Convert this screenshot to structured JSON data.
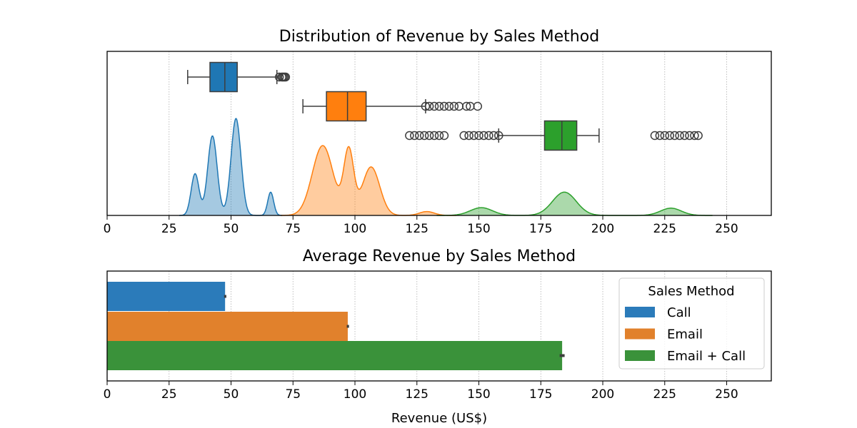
{
  "chart_data": [
    {
      "type": "box+kde",
      "title": "Distribution of Revenue by Sales Method",
      "xlabel": "",
      "ylabel": "",
      "xlim": [
        0,
        268
      ],
      "xticks": [
        0,
        25,
        50,
        75,
        100,
        125,
        150,
        175,
        200,
        225,
        250
      ],
      "grid": "x-dotted",
      "colors": {
        "Call": "#1f77b4",
        "Email": "#ff7f0e",
        "Email + Call": "#2ca02c"
      },
      "boxplots": [
        {
          "name": "Call",
          "whisker_low": 32.5,
          "q1": 41.5,
          "median": 47.5,
          "q3": 52.5,
          "whisker_high": 68.5,
          "outliers": [
            69.5,
            70.5,
            71.0,
            71.5,
            72.0
          ]
        },
        {
          "name": "Email",
          "whisker_low": 79.0,
          "q1": 88.5,
          "median": 97.0,
          "q3": 104.5,
          "whisker_high": 128.5,
          "outliers": [
            128.5,
            130,
            132,
            134,
            136,
            138,
            140,
            142,
            145,
            146.5,
            149.5
          ]
        },
        {
          "name": "Email + Call",
          "whisker_low": 158.0,
          "q1": 176.5,
          "median": 183.5,
          "q3": 189.5,
          "whisker_high": 198.5,
          "outliers": [
            122,
            124,
            126,
            128,
            130,
            132,
            134,
            136,
            144,
            146,
            148,
            150,
            152,
            154,
            156,
            158,
            221,
            223,
            225,
            227,
            229,
            231,
            233,
            235,
            237,
            238.5
          ]
        }
      ],
      "kde": [
        {
          "name": "Call",
          "peaks": [
            {
              "x": 35.5,
              "h": 0.43,
              "w": 1.6
            },
            {
              "x": 42.5,
              "h": 0.82,
              "w": 1.9
            },
            {
              "x": 52.0,
              "h": 1.0,
              "w": 2.0
            },
            {
              "x": 66.0,
              "h": 0.24,
              "w": 1.2
            }
          ]
        },
        {
          "name": "Email",
          "peaks": [
            {
              "x": 87.0,
              "h": 0.72,
              "w": 4.2
            },
            {
              "x": 97.5,
              "h": 0.66,
              "w": 2.0
            },
            {
              "x": 106.5,
              "h": 0.5,
              "w": 3.5
            },
            {
              "x": 129.0,
              "h": 0.04,
              "w": 3.0
            }
          ]
        },
        {
          "name": "Email + Call",
          "peaks": [
            {
              "x": 151.0,
              "h": 0.08,
              "w": 4.5
            },
            {
              "x": 184.5,
              "h": 0.24,
              "w": 4.8
            },
            {
              "x": 227.5,
              "h": 0.075,
              "w": 4.2
            }
          ]
        }
      ]
    },
    {
      "type": "bar",
      "orientation": "horizontal",
      "title": "Average Revenue by Sales Method",
      "xlabel": "Revenue (US$)",
      "ylabel": "",
      "xlim": [
        0,
        268
      ],
      "xticks": [
        0,
        25,
        50,
        75,
        100,
        125,
        150,
        175,
        200,
        225,
        250
      ],
      "grid": "x-dotted",
      "categories": [
        "Call",
        "Email",
        "Email + Call"
      ],
      "values": [
        47.6,
        97.1,
        183.6
      ],
      "error": [
        [
          47.2,
          48.1
        ],
        [
          96.7,
          97.6
        ],
        [
          182.6,
          184.6
        ]
      ],
      "colors": [
        "#2b7bba",
        "#e1812c",
        "#3a923a"
      ],
      "legend": {
        "title": "Sales Method",
        "position": "right",
        "entries": [
          "Call",
          "Email",
          "Email + Call"
        ]
      }
    }
  ]
}
